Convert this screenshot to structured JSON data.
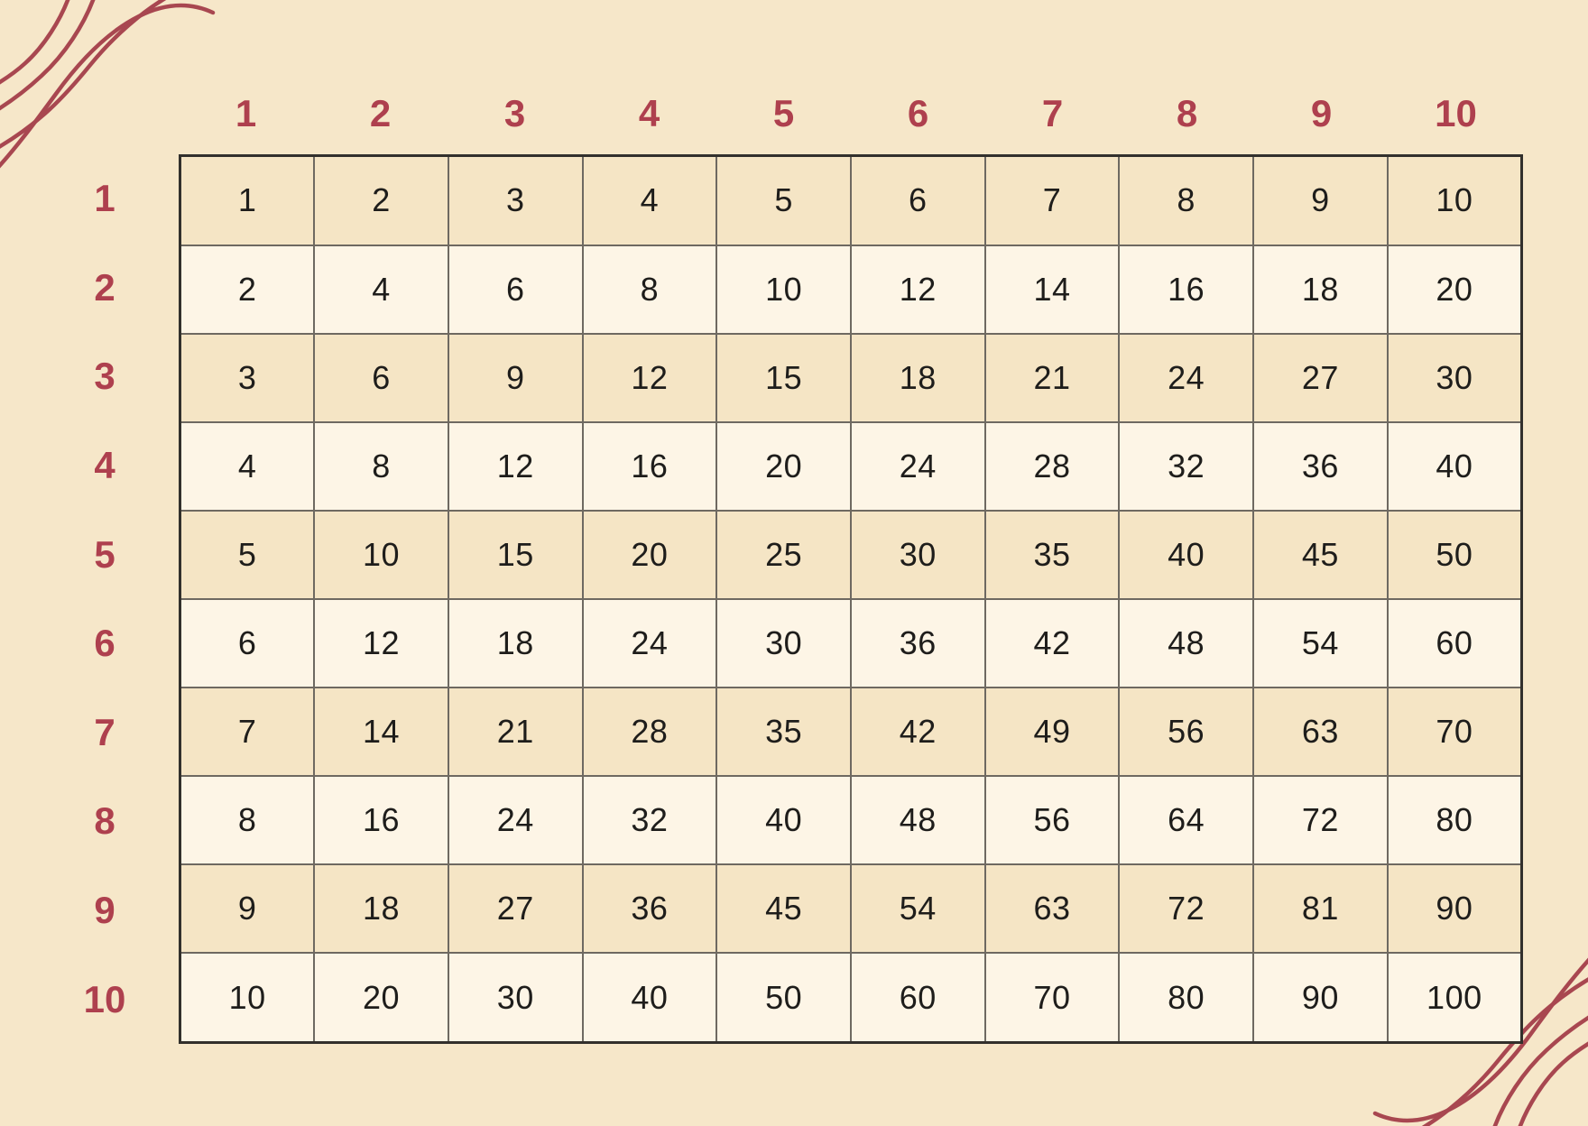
{
  "colors": {
    "background": "#F6E7C9",
    "row_tan": "#F5E5C5",
    "row_light": "#FDF5E6",
    "grid_line": "#6E6961",
    "outer_border": "#32302C",
    "accent_red": "#AE404E",
    "squiggle_red": "#A84750",
    "cell_text": "#1E1D1B"
  },
  "decorations": {
    "top_left": "wavy-lines-decoration",
    "bottom_right": "wavy-lines-decoration",
    "line_count": 4
  },
  "table": {
    "column_headers": [
      "1",
      "2",
      "3",
      "4",
      "5",
      "6",
      "7",
      "8",
      "9",
      "10"
    ],
    "row_headers": [
      "1",
      "2",
      "3",
      "4",
      "5",
      "6",
      "7",
      "8",
      "9",
      "10"
    ],
    "rows": [
      [
        1,
        2,
        3,
        4,
        5,
        6,
        7,
        8,
        9,
        10
      ],
      [
        2,
        4,
        6,
        8,
        10,
        12,
        14,
        16,
        18,
        20
      ],
      [
        3,
        6,
        9,
        12,
        15,
        18,
        21,
        24,
        27,
        30
      ],
      [
        4,
        8,
        12,
        16,
        20,
        24,
        28,
        32,
        36,
        40
      ],
      [
        5,
        10,
        15,
        20,
        25,
        30,
        35,
        40,
        45,
        50
      ],
      [
        6,
        12,
        18,
        24,
        30,
        36,
        42,
        48,
        54,
        60
      ],
      [
        7,
        14,
        21,
        28,
        35,
        42,
        49,
        56,
        63,
        70
      ],
      [
        8,
        16,
        24,
        32,
        40,
        48,
        56,
        64,
        72,
        80
      ],
      [
        9,
        18,
        27,
        36,
        45,
        54,
        63,
        72,
        81,
        90
      ],
      [
        10,
        20,
        30,
        40,
        50,
        60,
        70,
        80,
        90,
        100
      ]
    ]
  }
}
